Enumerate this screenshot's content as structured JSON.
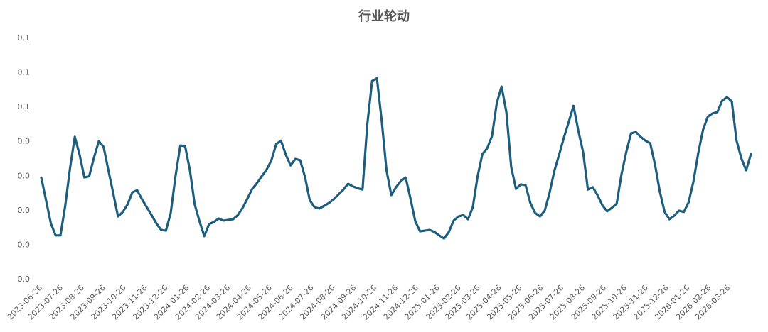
{
  "chart_data": {
    "type": "line",
    "title": "行业轮动",
    "x": [
      "2023-06-26",
      "2023-07-03",
      "2023-07-10",
      "2023-07-17",
      "2023-07-24",
      "2023-07-31",
      "2023-08-07",
      "2023-08-14",
      "2023-08-21",
      "2023-08-28",
      "2023-09-04",
      "2023-09-11",
      "2023-09-18",
      "2023-09-25",
      "2023-10-02",
      "2023-10-09",
      "2023-10-16",
      "2023-10-23",
      "2023-10-30",
      "2023-11-06",
      "2023-11-13",
      "2023-11-20",
      "2023-11-27",
      "2023-12-04",
      "2023-12-11",
      "2023-12-18",
      "2023-12-25",
      "2024-01-01",
      "2024-01-08",
      "2024-01-15",
      "2024-01-22",
      "2024-01-29",
      "2024-02-05",
      "2024-02-12",
      "2024-02-19",
      "2024-02-26",
      "2024-03-04",
      "2024-03-11",
      "2024-03-18",
      "2024-03-25",
      "2024-04-01",
      "2024-04-08",
      "2024-04-15",
      "2024-04-22",
      "2024-04-29",
      "2024-05-06",
      "2024-05-13",
      "2024-05-20",
      "2024-05-27",
      "2024-06-03",
      "2024-06-10",
      "2024-06-17",
      "2024-06-24",
      "2024-07-01",
      "2024-07-08",
      "2024-07-15",
      "2024-07-22",
      "2024-07-29",
      "2024-08-05",
      "2024-08-12",
      "2024-08-19",
      "2024-08-26",
      "2024-09-02",
      "2024-09-09",
      "2024-09-16",
      "2024-09-23",
      "2024-09-30",
      "2024-10-07",
      "2024-10-14",
      "2024-10-21",
      "2024-10-28",
      "2024-11-04",
      "2024-11-11",
      "2024-11-18",
      "2024-11-25",
      "2024-12-02",
      "2024-12-09",
      "2024-12-16",
      "2024-12-23",
      "2024-12-30",
      "2025-01-06",
      "2025-01-13",
      "2025-01-20",
      "2025-01-27",
      "2025-02-03",
      "2025-02-10",
      "2025-02-17",
      "2025-02-24",
      "2025-03-03",
      "2025-03-10",
      "2025-03-17",
      "2025-03-24",
      "2025-03-31",
      "2025-04-07",
      "2025-04-14",
      "2025-04-21",
      "2025-04-28",
      "2025-05-05",
      "2025-05-12",
      "2025-05-19",
      "2025-05-26",
      "2025-06-02",
      "2025-06-09",
      "2025-06-16",
      "2025-06-23",
      "2025-06-30",
      "2025-07-07",
      "2025-07-14",
      "2025-07-21",
      "2025-07-28",
      "2025-08-04",
      "2025-08-11",
      "2025-08-18",
      "2025-08-25",
      "2025-09-01",
      "2025-09-08",
      "2025-09-15",
      "2025-09-22",
      "2025-09-29",
      "2025-10-06",
      "2025-10-13",
      "2025-10-20",
      "2025-10-27",
      "2025-11-03",
      "2025-11-10",
      "2025-11-17",
      "2025-11-24",
      "2025-12-01",
      "2025-12-08",
      "2025-12-15",
      "2025-12-22",
      "2025-12-29",
      "2026-01-05",
      "2026-01-12",
      "2026-01-19",
      "2026-01-26",
      "2026-02-02",
      "2026-02-09",
      "2026-02-16",
      "2026-02-23",
      "2026-03-02",
      "2026-03-09",
      "2026-03-16",
      "2026-03-23",
      "2026-03-30",
      "2026-04-06",
      "2026-04-13",
      "2026-04-20",
      "2026-04-27"
    ],
    "series": [
      {
        "color": "#1d5e7e",
        "values": [
          0.0296,
          0.023,
          0.0163,
          0.0128,
          0.0128,
          0.0214,
          0.0323,
          0.0414,
          0.0362,
          0.0296,
          0.03,
          0.0354,
          0.0401,
          0.0385,
          0.0317,
          0.0251,
          0.0183,
          0.0196,
          0.0218,
          0.0253,
          0.0259,
          0.0233,
          0.021,
          0.0187,
          0.0163,
          0.0144,
          0.0142,
          0.0193,
          0.03,
          0.0389,
          0.0387,
          0.0317,
          0.0218,
          0.0169,
          0.0126,
          0.0161,
          0.0167,
          0.0177,
          0.0171,
          0.0173,
          0.0175,
          0.0187,
          0.0208,
          0.0235,
          0.0263,
          0.028,
          0.03,
          0.0319,
          0.0346,
          0.0393,
          0.0403,
          0.0362,
          0.0331,
          0.035,
          0.0346,
          0.0298,
          0.023,
          0.021,
          0.0206,
          0.0214,
          0.0222,
          0.0233,
          0.0247,
          0.0261,
          0.0278,
          0.027,
          0.0265,
          0.0261,
          0.0451,
          0.0576,
          0.0584,
          0.0461,
          0.0317,
          0.0245,
          0.0268,
          0.0286,
          0.0296,
          0.0235,
          0.0169,
          0.014,
          0.0142,
          0.0144,
          0.0138,
          0.0128,
          0.0119,
          0.0138,
          0.0171,
          0.0183,
          0.0187,
          0.0175,
          0.021,
          0.03,
          0.0364,
          0.0381,
          0.0416,
          0.0512,
          0.056,
          0.0486,
          0.0327,
          0.0263,
          0.0276,
          0.0274,
          0.0222,
          0.0193,
          0.0183,
          0.02,
          0.0251,
          0.0315,
          0.0362,
          0.0412,
          0.0457,
          0.0504,
          0.0432,
          0.037,
          0.0261,
          0.0268,
          0.0245,
          0.0216,
          0.0198,
          0.0208,
          0.022,
          0.0305,
          0.037,
          0.0424,
          0.0428,
          0.0414,
          0.0403,
          0.0395,
          0.0333,
          0.0255,
          0.0196,
          0.0175,
          0.0185,
          0.02,
          0.0196,
          0.0224,
          0.0284,
          0.0366,
          0.0434,
          0.0473,
          0.0482,
          0.0486,
          0.0519,
          0.0529,
          0.0517,
          0.0403,
          0.0352,
          0.0317,
          0.0364
        ]
      }
    ],
    "xlim": [
      "2023-06-26",
      "2026-04-27"
    ],
    "xticks": [
      "2023-06-26",
      "2023-07-26",
      "2023-08-26",
      "2023-09-26",
      "2023-10-26",
      "2023-11-26",
      "2023-12-26",
      "2024-01-26",
      "2024-02-26",
      "2024-03-26",
      "2024-04-26",
      "2024-05-26",
      "2024-06-26",
      "2024-07-26",
      "2024-08-26",
      "2024-09-26",
      "2024-10-26",
      "2024-11-26",
      "2024-12-26",
      "2025-01-26",
      "2025-02-26",
      "2025-03-26",
      "2025-04-26",
      "2025-05-26",
      "2025-06-26",
      "2025-07-26",
      "2025-08-26",
      "2025-09-26",
      "2025-10-26",
      "2025-11-26",
      "2025-12-26",
      "2026-01-26",
      "2026-02-26",
      "2026-03-26"
    ],
    "ylim": [
      0,
      0.07
    ],
    "yticks": [
      {
        "value": 0,
        "label": "0.0"
      },
      {
        "value": 0.01,
        "label": "0.0"
      },
      {
        "value": 0.02,
        "label": "0.0"
      },
      {
        "value": 0.03,
        "label": "0.0"
      },
      {
        "value": 0.04,
        "label": "0.0"
      },
      {
        "value": 0.05,
        "label": "0.1"
      },
      {
        "value": 0.06,
        "label": "0.1"
      },
      {
        "value": 0.07,
        "label": "0.1"
      }
    ],
    "grid": false
  }
}
